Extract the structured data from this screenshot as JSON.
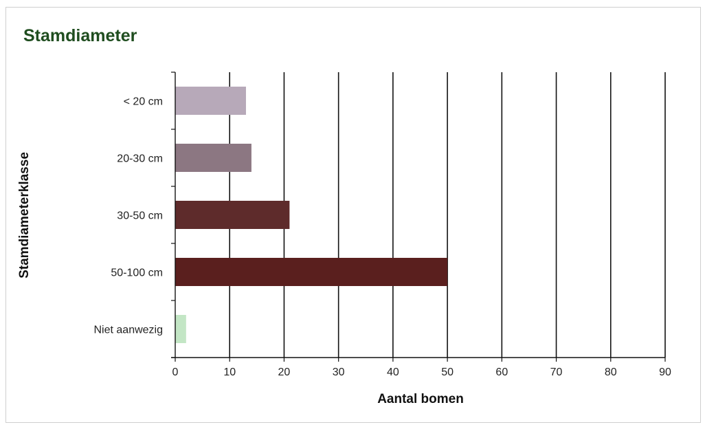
{
  "colors": {
    "title": "#1f4d1f",
    "axis": "#111111",
    "bars": [
      "#b7a9b9",
      "#8c7782",
      "#5e2b2b",
      "#5a1f1e",
      "#c3e6c5"
    ]
  },
  "chart_data": {
    "type": "bar",
    "orientation": "horizontal",
    "title": "Stamdiameter",
    "xlabel": "Aantal bomen",
    "ylabel": "Stamdiameterklasse",
    "categories": [
      "< 20 cm",
      "20-30 cm",
      "30-50 cm",
      "50-100 cm",
      "Niet aanwezig"
    ],
    "values": [
      13,
      14,
      21,
      50,
      2
    ],
    "xlim": [
      0,
      90
    ],
    "xticks": [
      0,
      10,
      20,
      30,
      40,
      50,
      60,
      70,
      80,
      90
    ],
    "grid": "vertical",
    "legend": "none"
  }
}
